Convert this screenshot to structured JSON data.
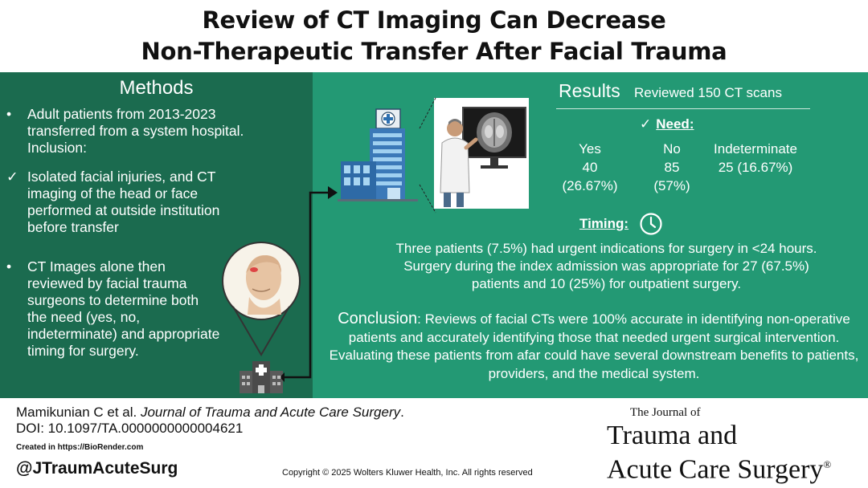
{
  "title": {
    "line1": "Review of CT Imaging Can Decrease",
    "line2": "Non-Therapeutic Transfer After Facial Trauma"
  },
  "methods": {
    "heading": "Methods",
    "items": [
      {
        "bullet": "•",
        "text": "Adult patients from 2013-2023 transferred from a system hospital. Inclusion:"
      },
      {
        "bullet": "✓",
        "text": "Isolated facial injuries, and CT imaging of the head or face performed at outside institution before transfer"
      },
      {
        "bullet": "•",
        "text": "CT Images alone then reviewed by facial trauma surgeons to determine both the need (yes, no, indeterminate) and appropriate timing for surgery."
      }
    ]
  },
  "results": {
    "heading": "Results",
    "subheading": "Reviewed 150 CT scans",
    "need_check": "✓",
    "need_label": "Need:",
    "columns": [
      {
        "label": "Yes",
        "count": "40",
        "pct": "(26.67%)"
      },
      {
        "label": "No",
        "count": "85",
        "pct": "(57%)"
      },
      {
        "label": "Indeterminate",
        "count": "25 (16.67%)"
      }
    ],
    "timing_label": "Timing:",
    "timing_lines": [
      "Three patients (7.5%) had urgent indications for surgery in <24 hours.",
      "Surgery during the index admission was appropriate for 27 (67.5%)",
      "patients and 10 (25%) for outpatient surgery."
    ],
    "conclusion_label": "Conclusion",
    "conclusion_text": ": Reviews of facial CTs were 100% accurate in identifying non-operative patients and accurately identifying those that needed urgent surgical intervention. Evaluating these patients from afar could have several downstream benefits to patients, providers, and the medical system."
  },
  "footer": {
    "cite_authors": "Mamikunian C et al. ",
    "cite_journal": "Journal of Trauma and Acute Care Surgery",
    "cite_end": ".",
    "doi": "DOI: 10.1097/TA.0000000000004621",
    "created": "Created in  https://BioRender.com",
    "handle": "@JTraumAcuteSurg",
    "copyright": "Copyright © 2025  Wolters Kluwer Health, Inc. All rights reserved"
  },
  "journal_logo": {
    "small": "The Journal of",
    "line1": "Trauma and",
    "line2": "Acute Care Surgery",
    "reg": "®"
  },
  "colors": {
    "methods_bg": "#1b6b4f",
    "results_bg": "#239974"
  },
  "icons": [
    "hospital-building-icon",
    "doctor-viewing-ct-icon",
    "patient-face-icon",
    "location-pin-icon",
    "small-hospital-icon",
    "clock-icon",
    "checkmark-icon"
  ]
}
